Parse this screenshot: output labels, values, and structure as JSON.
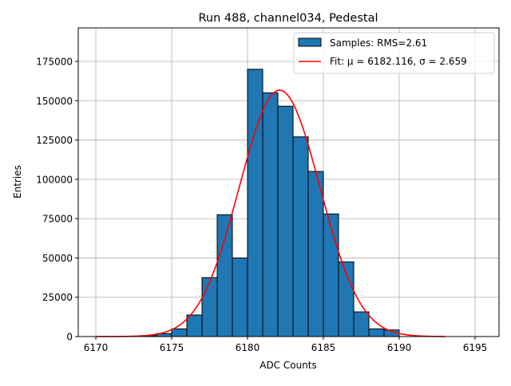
{
  "chart_data": {
    "type": "bar",
    "title": "Run 488, channel034, Pedestal",
    "xlabel": "ADC Counts",
    "ylabel": "Entries",
    "xlim": [
      6168.84,
      6196.58
    ],
    "ylim": [
      0,
      196300
    ],
    "grid": true,
    "legend_position": "top-right",
    "x_ticks": [
      6170,
      6175,
      6180,
      6185,
      6190,
      6195
    ],
    "y_ticks": [
      0,
      25000,
      50000,
      75000,
      100000,
      125000,
      150000,
      175000
    ],
    "histogram": {
      "name": "Samples: RMS=2.61",
      "color": "#1f77b4",
      "bin_width": 1,
      "bin_edges_start": [
        6173,
        6174,
        6175,
        6176,
        6177,
        6178,
        6179,
        6180,
        6181,
        6182,
        6183,
        6184,
        6185,
        6186,
        6187,
        6188,
        6189
      ],
      "values": [
        600,
        1900,
        4900,
        13700,
        37500,
        77500,
        50000,
        170000,
        155000,
        146500,
        127000,
        105000,
        78000,
        47500,
        15700,
        4900,
        4200
      ]
    },
    "fit": {
      "name": "Fit: μ = 6182.116, σ = 2.659",
      "color": "#ff0000",
      "mu": 6182.116,
      "sigma": 2.659,
      "amplitude": 156700,
      "x_range": [
        6170,
        6193
      ]
    }
  }
}
